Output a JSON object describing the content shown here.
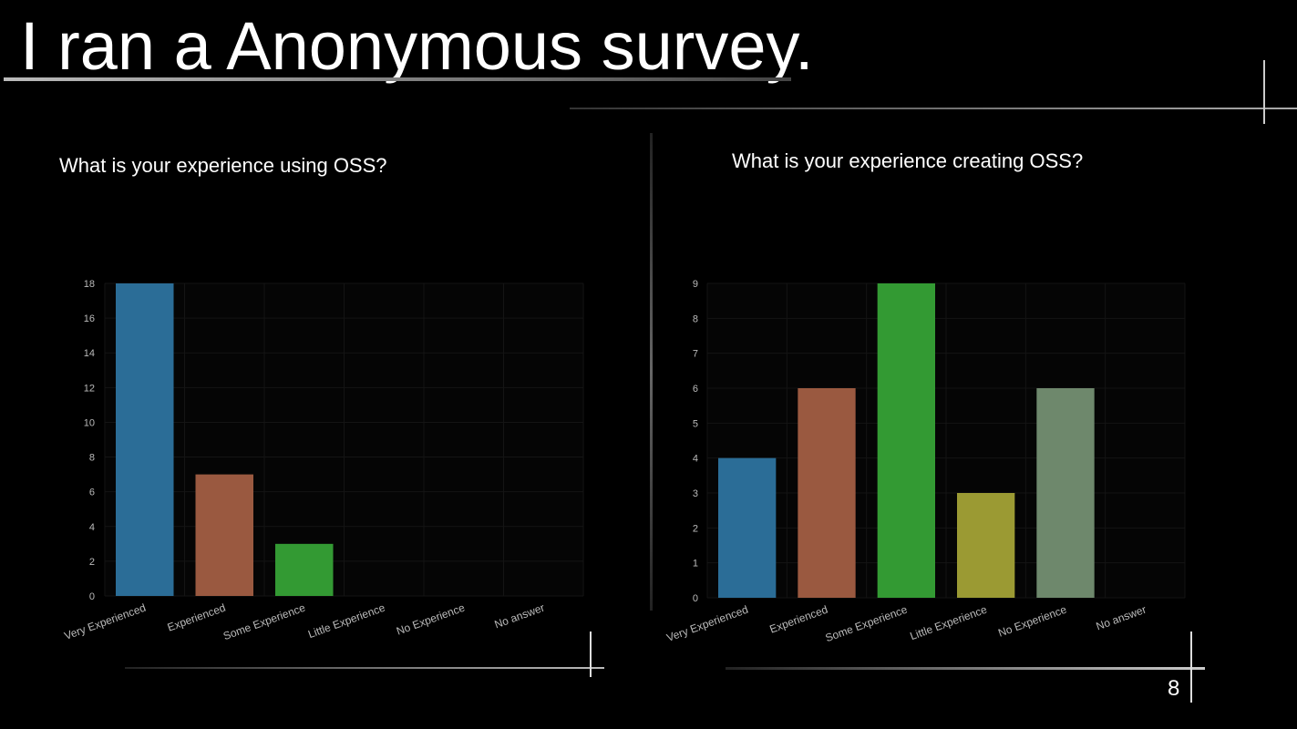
{
  "slide": {
    "title": "I ran a Anonymous survey.",
    "page_number": "8"
  },
  "chart_data": [
    {
      "type": "bar",
      "title": "What is your experience using OSS?",
      "categories": [
        "Very Experienced",
        "Experienced",
        "Some Experience",
        "Little Experience",
        "No Experience",
        "No answer"
      ],
      "values": [
        18,
        7,
        3,
        0,
        0,
        0
      ],
      "colors": [
        "#2b6d97",
        "#9a5940",
        "#339a33",
        "#9b9a33",
        "#6e886c",
        "#555555"
      ],
      "ylim": [
        0,
        18
      ],
      "yticks": [
        0,
        2,
        4,
        6,
        8,
        10,
        12,
        14,
        16,
        18
      ],
      "grid": true,
      "xlabel": "",
      "ylabel": ""
    },
    {
      "type": "bar",
      "title": "What is your experience creating OSS?",
      "categories": [
        "Very Experienced",
        "Experienced",
        "Some Experience",
        "Little Experience",
        "No Experience",
        "No answer"
      ],
      "values": [
        4,
        6,
        9,
        3,
        6,
        0
      ],
      "colors": [
        "#2b6d97",
        "#9a5940",
        "#339a33",
        "#9b9a33",
        "#6e886c",
        "#555555"
      ],
      "ylim": [
        0,
        9
      ],
      "yticks": [
        0,
        1,
        2,
        3,
        4,
        5,
        6,
        7,
        8,
        9
      ],
      "grid": true,
      "xlabel": "",
      "ylabel": ""
    }
  ]
}
